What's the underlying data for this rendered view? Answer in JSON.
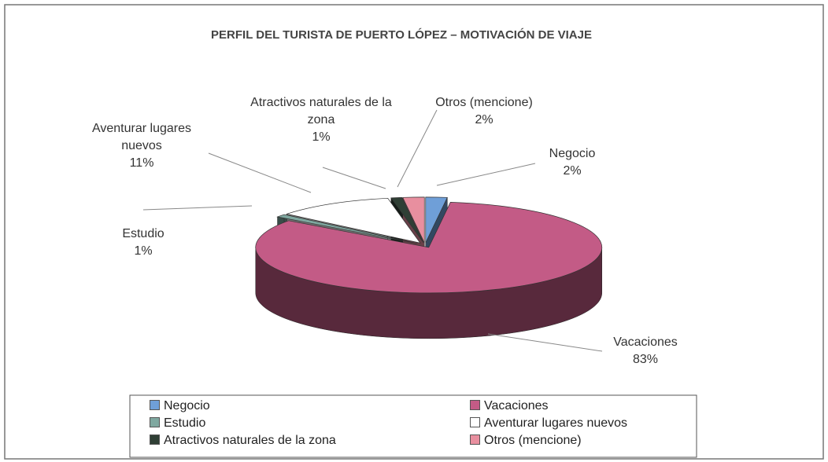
{
  "chart_data": {
    "type": "pie",
    "title": "PERFIL DEL TURISTA DE PUERTO LÓPEZ – MOTIVACIÓN DE VIAJE",
    "categories": [
      "Negocio",
      "Vacaciones",
      "Estudio",
      "Aventurar lugares nuevos",
      "Atractivos naturales de la zona",
      "Otros (mencione)"
    ],
    "values": [
      2,
      83,
      1,
      11,
      1,
      2
    ],
    "value_labels": [
      "2%",
      "83%",
      "1%",
      "11%",
      "1%",
      "2%"
    ],
    "colors": [
      "#6f9fd8",
      "#c35b86",
      "#7fa8a0",
      "#ffffff",
      "#2f3f35",
      "#e88f9f"
    ],
    "legend": "bottom"
  }
}
